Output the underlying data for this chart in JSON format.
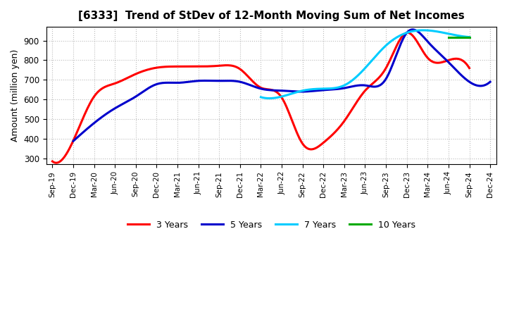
{
  "title": "[6333]  Trend of StDev of 12-Month Moving Sum of Net Incomes",
  "ylabel": "Amount (million yen)",
  "background_color": "#ffffff",
  "grid_color": "#bbbbbb",
  "ylim": [
    270,
    970
  ],
  "yticks": [
    300,
    400,
    500,
    600,
    700,
    800,
    900
  ],
  "x_labels": [
    "Sep-19",
    "Dec-19",
    "Mar-20",
    "Jun-20",
    "Sep-20",
    "Dec-20",
    "Mar-21",
    "Jun-21",
    "Sep-21",
    "Dec-21",
    "Mar-22",
    "Jun-22",
    "Sep-22",
    "Dec-22",
    "Mar-23",
    "Jun-23",
    "Sep-23",
    "Dec-23",
    "Mar-24",
    "Jun-24",
    "Sep-24",
    "Dec-24"
  ],
  "series": {
    "3 Years": {
      "color": "#ff0000",
      "linewidth": 2.2,
      "data": [
        [
          0,
          285
        ],
        [
          1,
          390
        ],
        [
          2,
          615
        ],
        [
          3,
          682
        ],
        [
          4,
          730
        ],
        [
          5,
          762
        ],
        [
          6,
          768
        ],
        [
          7,
          768
        ],
        [
          8,
          772
        ],
        [
          9,
          755
        ],
        [
          10,
          660
        ],
        [
          11,
          610
        ],
        [
          12,
          375
        ],
        [
          13,
          380
        ],
        [
          14,
          490
        ],
        [
          15,
          645
        ],
        [
          16,
          760
        ],
        [
          17,
          940
        ],
        [
          18,
          812
        ],
        [
          19,
          800
        ],
        [
          20,
          760
        ]
      ]
    },
    "5 Years": {
      "color": "#0000cc",
      "linewidth": 2.2,
      "data": [
        [
          1,
          388
        ],
        [
          2,
          480
        ],
        [
          3,
          555
        ],
        [
          4,
          615
        ],
        [
          5,
          678
        ],
        [
          6,
          685
        ],
        [
          7,
          695
        ],
        [
          8,
          695
        ],
        [
          9,
          690
        ],
        [
          10,
          655
        ],
        [
          11,
          645
        ],
        [
          12,
          640
        ],
        [
          13,
          648
        ],
        [
          14,
          658
        ],
        [
          15,
          672
        ],
        [
          16,
          705
        ],
        [
          17,
          940
        ],
        [
          18,
          895
        ],
        [
          19,
          790
        ],
        [
          20,
          690
        ],
        [
          21,
          690
        ]
      ]
    },
    "7 Years": {
      "color": "#00ccff",
      "linewidth": 2.2,
      "data": [
        [
          10,
          612
        ],
        [
          11,
          615
        ],
        [
          12,
          645
        ],
        [
          13,
          655
        ],
        [
          14,
          672
        ],
        [
          15,
          760
        ],
        [
          16,
          875
        ],
        [
          17,
          940
        ],
        [
          18,
          952
        ],
        [
          19,
          935
        ],
        [
          20,
          918
        ]
      ]
    },
    "10 Years": {
      "color": "#00aa00",
      "linewidth": 2.2,
      "data": [
        [
          19,
          918
        ],
        [
          20,
          918
        ]
      ]
    }
  },
  "legend_order": [
    "3 Years",
    "5 Years",
    "7 Years",
    "10 Years"
  ]
}
